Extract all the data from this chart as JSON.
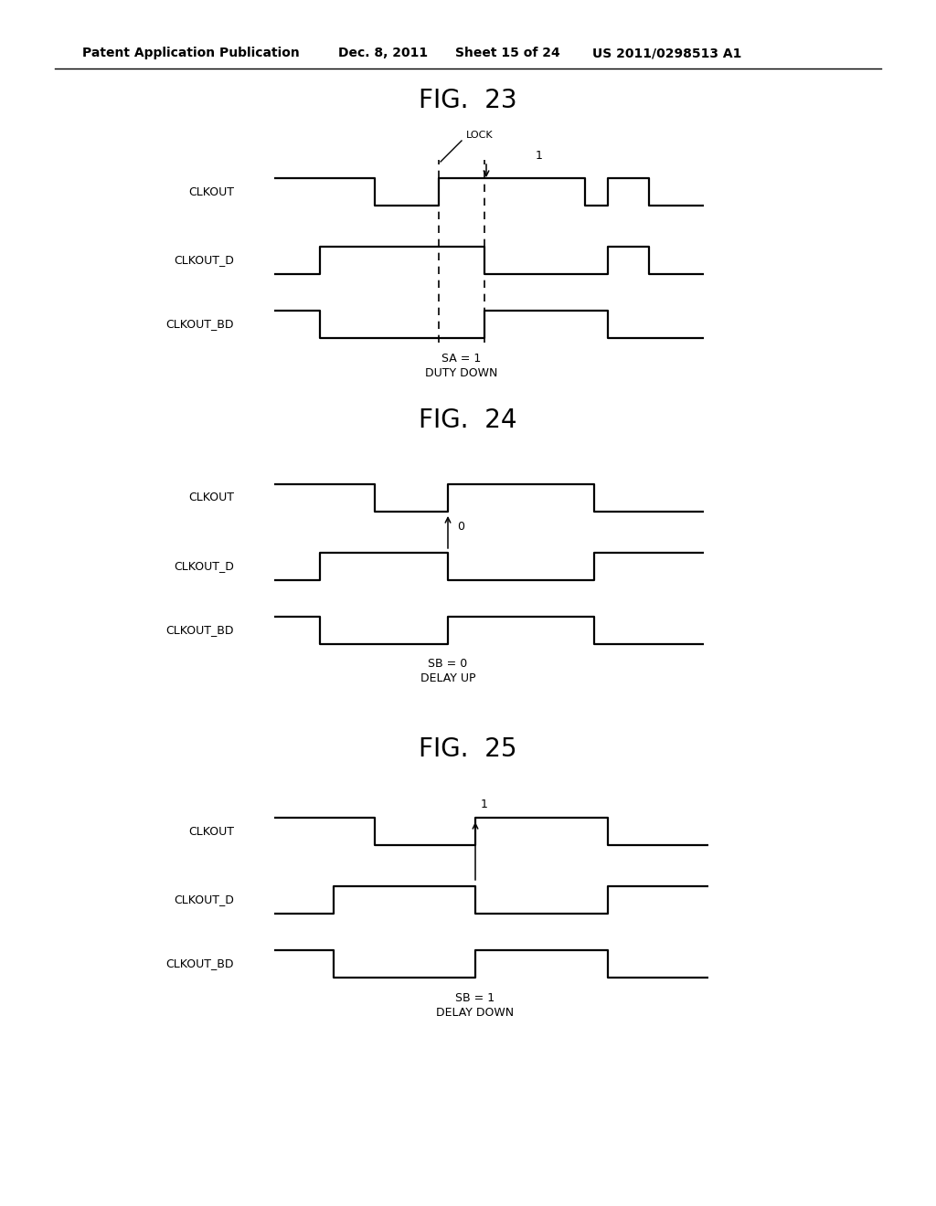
{
  "background_color": "#ffffff",
  "line_color": "#000000",
  "text_color": "#000000",
  "header_left": "Patent Application Publication",
  "header_mid1": "Dec. 8, 2011",
  "header_mid2": "Sheet 15 of 24",
  "header_right": "US 2011/0298513 A1",
  "fig23_title": "FIG.  23",
  "fig24_title": "FIG.  24",
  "fig25_title": "FIG.  25",
  "labels": [
    "CLKOUT",
    "CLKOUT_D",
    "CLKOUT_BD"
  ],
  "fig23_lock": "LOCK",
  "fig23_sa": "SA = 1",
  "fig23_duty": "DUTY DOWN",
  "fig23_num": "1",
  "fig24_num": "0",
  "fig24_sb": "SB = 0",
  "fig24_delay": "DELAY UP",
  "fig25_num": "1",
  "fig25_sb": "SB = 1",
  "fig25_delay": "DELAY DOWN",
  "sig_high": 30,
  "lw": 1.6
}
